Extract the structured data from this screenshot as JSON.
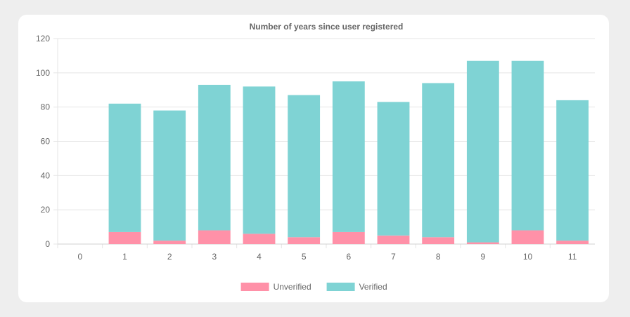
{
  "chart_data": {
    "type": "bar",
    "stacked": true,
    "title": "Number of years since user registered",
    "categories": [
      "0",
      "1",
      "2",
      "3",
      "4",
      "5",
      "6",
      "7",
      "8",
      "9",
      "10",
      "11"
    ],
    "series": [
      {
        "name": "Unverified",
        "color": "#ff91a8",
        "values": [
          0,
          7,
          2,
          8,
          6,
          4,
          7,
          5,
          4,
          1,
          8,
          2
        ]
      },
      {
        "name": "Verified",
        "color": "#7fd3d4",
        "values": [
          0,
          75,
          76,
          85,
          86,
          83,
          88,
          78,
          90,
          106,
          99,
          82
        ]
      }
    ],
    "ylim": [
      0,
      120
    ],
    "yticks": [
      0,
      20,
      40,
      60,
      80,
      100,
      120
    ],
    "grid": true,
    "legend": "bottom"
  }
}
